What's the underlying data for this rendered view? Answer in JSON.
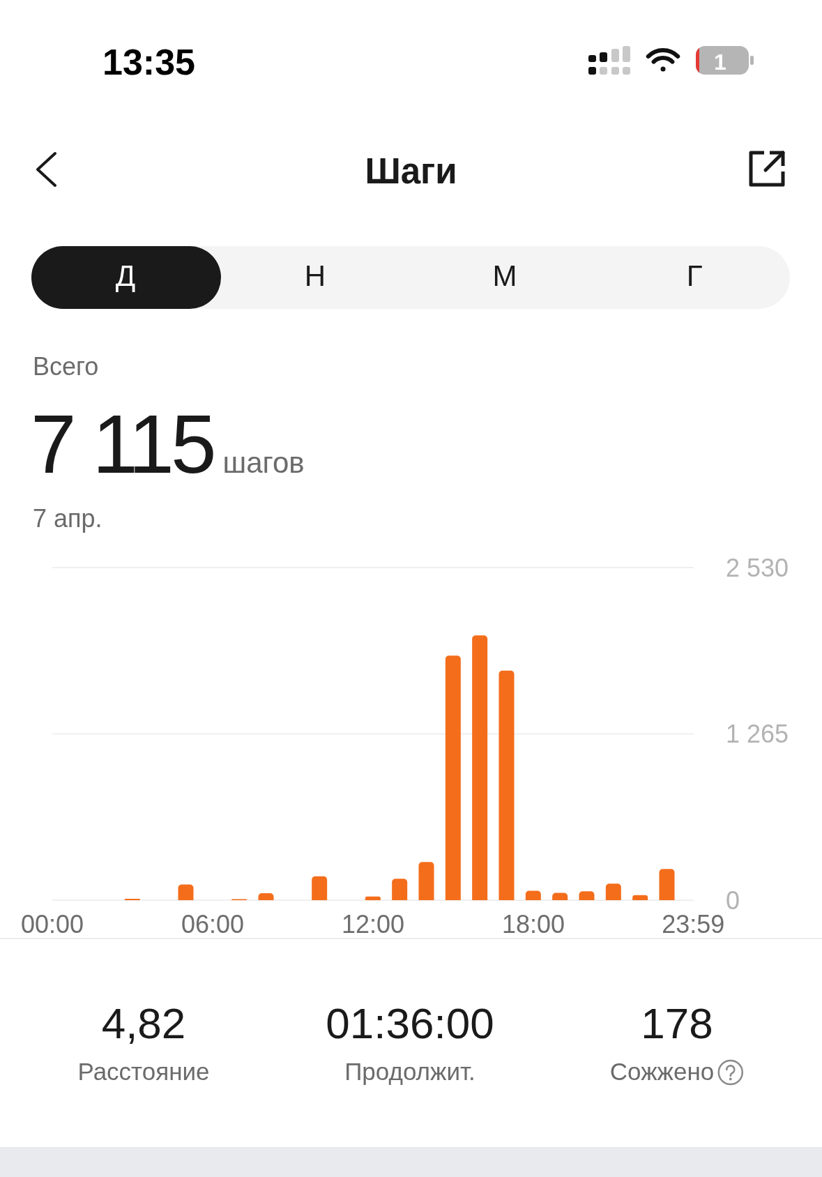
{
  "chart_data": {
    "type": "bar",
    "title": "Шаги",
    "annotations": [
      "13:35",
      "1",
      "Д",
      "Н",
      "М",
      "Г",
      "Всего",
      "7 115",
      "шагов",
      "7 апр.",
      "4,82",
      "Расстояние",
      "01:36:00",
      "Продолжит.",
      "178",
      "Сожжено"
    ],
    "x": [
      0,
      1,
      2,
      3,
      4,
      5,
      6,
      7,
      8,
      9,
      10,
      11,
      12,
      13,
      14,
      15,
      16,
      17,
      18,
      19,
      20,
      21,
      22,
      23
    ],
    "values": [
      0,
      0,
      0,
      10,
      0,
      119,
      0,
      8,
      53,
      0,
      182,
      0,
      28,
      163,
      290,
      1860,
      2014,
      1746,
      71,
      56,
      67,
      126,
      38,
      237
    ],
    "color": "#f46d1b",
    "xlim": [
      0,
      24
    ],
    "xticks": [
      {
        "value": 0,
        "label": "00:00"
      },
      {
        "value": 6,
        "label": "06:00"
      },
      {
        "value": 12,
        "label": "12:00"
      },
      {
        "value": 18,
        "label": "18:00"
      },
      {
        "value": 23.983,
        "label": "23:59"
      }
    ],
    "ylim": [
      0,
      2530
    ],
    "yticks": [
      0,
      {
        "value": 1265,
        "label": "1 265"
      },
      {
        "value": 2530,
        "label": "2 530"
      }
    ],
    "grid": "y"
  }
}
